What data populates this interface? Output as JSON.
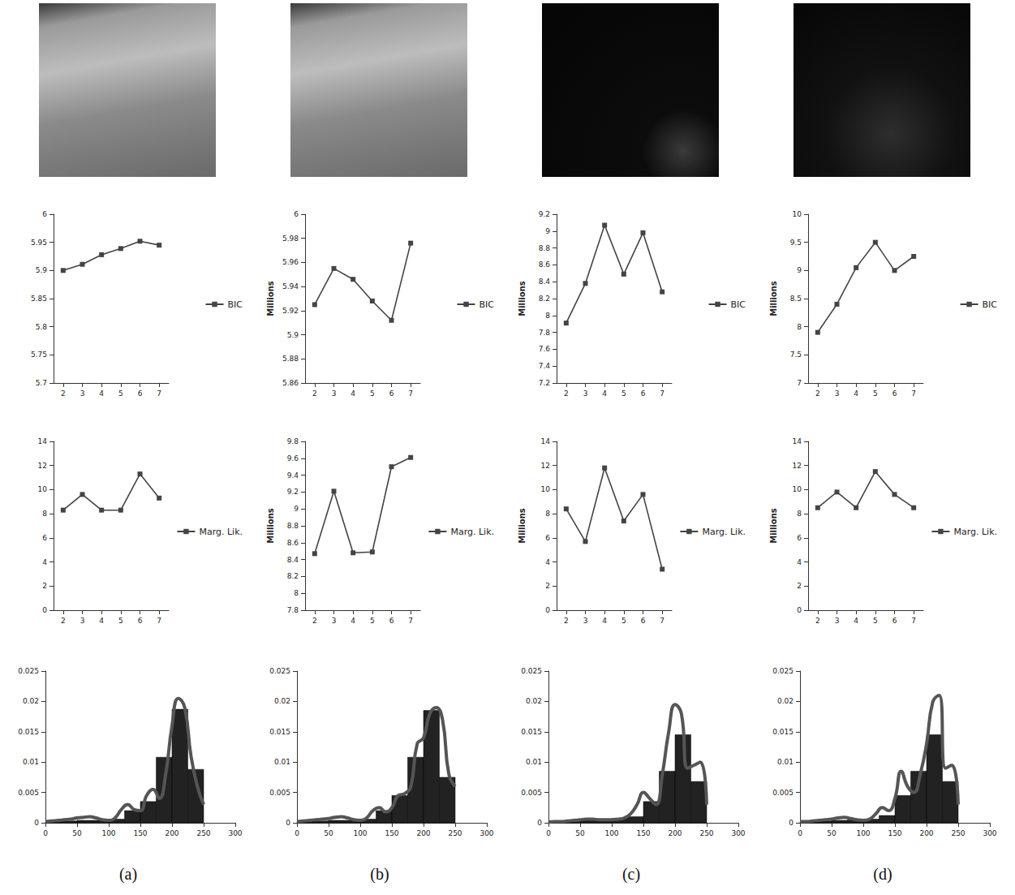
{
  "panel_labels": [
    "(a)",
    "(b)",
    "(c)",
    "(d)"
  ],
  "chart_data": [
    {
      "type": "line",
      "categories": [
        "2",
        "3",
        "4",
        "5",
        "6",
        "7"
      ],
      "series": [
        {
          "name": "BIC",
          "color": "#444444",
          "marker": "square",
          "values": [
            5.9,
            5.911,
            5.928,
            5.939,
            5.952,
            5.945
          ]
        }
      ],
      "ylim": [
        5.7,
        6.0
      ],
      "yticks": [
        5.7,
        5.75,
        5.8,
        5.85,
        5.9,
        5.95,
        6
      ],
      "grid": false,
      "legend": "right"
    },
    {
      "type": "line",
      "categories": [
        "2",
        "3",
        "4",
        "5",
        "6",
        "7"
      ],
      "series": [
        {
          "name": "Marg. Lik.",
          "color": "#444444",
          "marker": "square",
          "values": [
            8.3,
            9.6,
            8.3,
            8.3,
            11.3,
            9.3
          ]
        }
      ],
      "ylim": [
        0,
        14
      ],
      "yticks": [
        0,
        2,
        4,
        6,
        8,
        10,
        12,
        14
      ],
      "grid": false,
      "legend": "right"
    },
    {
      "type": "histogram",
      "bins": [
        0,
        25,
        50,
        75,
        100,
        125,
        150,
        175,
        200,
        225,
        250
      ],
      "counts": [
        0.0002,
        0.0003,
        0.0004,
        0.0004,
        0.0006,
        0.002,
        0.0035,
        0.0108,
        0.0187,
        0.0088
      ],
      "color": "#222222",
      "curve": {
        "color": "#555555",
        "x": [
          0,
          10,
          20,
          30,
          40,
          50,
          60,
          70,
          80,
          90,
          100,
          110,
          120,
          130,
          140,
          150,
          160,
          170,
          180,
          190,
          200,
          210,
          220,
          230,
          240,
          250
        ],
        "values": [
          0.0002,
          0.0003,
          0.0004,
          0.0005,
          0.0006,
          0.0008,
          0.0009,
          0.001,
          0.0008,
          0.0005,
          0.0004,
          0.0008,
          0.0022,
          0.003,
          0.0022,
          0.002,
          0.0045,
          0.0055,
          0.004,
          0.008,
          0.016,
          0.0205,
          0.019,
          0.011,
          0.006,
          0.003
        ]
      },
      "xlim": [
        0,
        300
      ],
      "xticks": [
        0,
        50,
        100,
        150,
        200,
        250,
        300
      ],
      "ylim": [
        0,
        0.025
      ],
      "yticks": [
        0,
        0.005,
        0.01,
        0.015,
        0.02,
        0.025
      ],
      "grid": false
    },
    {
      "type": "line",
      "categories": [
        "2",
        "3",
        "4",
        "5",
        "6",
        "7"
      ],
      "ylabel": "Millions",
      "series": [
        {
          "name": "BIC",
          "color": "#444444",
          "marker": "square",
          "values": [
            5.925,
            5.955,
            5.946,
            5.928,
            5.912,
            5.976
          ]
        }
      ],
      "ylim": [
        5.86,
        6.0
      ],
      "yticks": [
        5.86,
        5.88,
        5.9,
        5.92,
        5.94,
        5.96,
        5.98,
        6
      ],
      "grid": false,
      "legend": "right"
    },
    {
      "type": "line",
      "categories": [
        "2",
        "3",
        "4",
        "5",
        "6",
        "7"
      ],
      "ylabel": "Millions",
      "series": [
        {
          "name": "Marg. Lik.",
          "color": "#444444",
          "marker": "square",
          "values": [
            8.47,
            9.21,
            8.48,
            8.49,
            9.5,
            9.61
          ]
        }
      ],
      "ylim": [
        7.8,
        9.8
      ],
      "yticks": [
        7.8,
        8,
        8.2,
        8.4,
        8.6,
        8.8,
        9,
        9.2,
        9.4,
        9.6,
        9.8
      ],
      "grid": false,
      "legend": "right"
    },
    {
      "type": "histogram",
      "bins": [
        0,
        25,
        50,
        75,
        100,
        125,
        150,
        175,
        200,
        225,
        250
      ],
      "counts": [
        0.0002,
        0.0003,
        0.0004,
        0.0004,
        0.0006,
        0.002,
        0.0045,
        0.0108,
        0.0185,
        0.0075
      ],
      "color": "#222222",
      "curve": {
        "color": "#555555",
        "x": [
          0,
          10,
          20,
          30,
          40,
          50,
          60,
          70,
          80,
          90,
          100,
          110,
          120,
          130,
          140,
          150,
          160,
          170,
          180,
          190,
          200,
          210,
          220,
          230,
          240,
          250
        ],
        "values": [
          0.0002,
          0.0003,
          0.0004,
          0.0005,
          0.0006,
          0.0007,
          0.0009,
          0.001,
          0.0008,
          0.0005,
          0.0004,
          0.0008,
          0.002,
          0.0025,
          0.0018,
          0.0025,
          0.0045,
          0.0048,
          0.006,
          0.013,
          0.014,
          0.018,
          0.019,
          0.017,
          0.008,
          0.006
        ]
      },
      "xlim": [
        0,
        300
      ],
      "xticks": [
        0,
        50,
        100,
        150,
        200,
        250,
        300
      ],
      "ylim": [
        0,
        0.025
      ],
      "yticks": [
        0,
        0.005,
        0.01,
        0.015,
        0.02,
        0.025
      ],
      "grid": false
    },
    {
      "type": "line",
      "categories": [
        "2",
        "3",
        "4",
        "5",
        "6",
        "7"
      ],
      "ylabel": "Millions",
      "series": [
        {
          "name": "BIC",
          "color": "#444444",
          "marker": "square",
          "values": [
            7.91,
            8.38,
            9.07,
            8.49,
            8.98,
            8.28
          ]
        }
      ],
      "ylim": [
        7.2,
        9.2
      ],
      "yticks": [
        7.2,
        7.4,
        7.6,
        7.8,
        8,
        8.2,
        8.4,
        8.6,
        8.8,
        9,
        9.2
      ],
      "grid": false,
      "legend": "right"
    },
    {
      "type": "line",
      "categories": [
        "2",
        "3",
        "4",
        "5",
        "6",
        "7"
      ],
      "ylabel": "Millions",
      "series": [
        {
          "name": "Marg. Lik.",
          "color": "#444444",
          "marker": "square",
          "values": [
            8.4,
            5.7,
            11.8,
            7.4,
            9.6,
            3.4
          ]
        }
      ],
      "ylim": [
        0,
        14
      ],
      "yticks": [
        0,
        2,
        4,
        6,
        8,
        10,
        12,
        14
      ],
      "grid": false,
      "legend": "right"
    },
    {
      "type": "histogram",
      "bins": [
        0,
        25,
        50,
        75,
        100,
        125,
        150,
        175,
        200,
        225,
        250
      ],
      "counts": [
        0.0002,
        0.0002,
        0.0005,
        0.0005,
        0.0007,
        0.001,
        0.0035,
        0.0085,
        0.0145,
        0.0068
      ],
      "color": "#222222",
      "curve": {
        "color": "#555555",
        "x": [
          0,
          10,
          20,
          30,
          40,
          50,
          60,
          70,
          80,
          90,
          100,
          110,
          120,
          130,
          140,
          150,
          160,
          170,
          180,
          190,
          200,
          210,
          220,
          230,
          240,
          250
        ],
        "values": [
          0.0001,
          0.0002,
          0.0002,
          0.0003,
          0.0004,
          0.0005,
          0.0006,
          0.0006,
          0.0005,
          0.0005,
          0.0005,
          0.0006,
          0.0008,
          0.0015,
          0.003,
          0.005,
          0.004,
          0.003,
          0.008,
          0.015,
          0.0195,
          0.018,
          0.009,
          0.0095,
          0.01,
          0.003
        ]
      },
      "xlim": [
        0,
        300
      ],
      "xticks": [
        0,
        50,
        100,
        150,
        200,
        250,
        300
      ],
      "ylim": [
        0,
        0.025
      ],
      "yticks": [
        0,
        0.005,
        0.01,
        0.015,
        0.02,
        0.025
      ],
      "grid": false
    },
    {
      "type": "line",
      "categories": [
        "2",
        "3",
        "4",
        "5",
        "6",
        "7"
      ],
      "ylabel": "Millions",
      "series": [
        {
          "name": "BIC",
          "color": "#444444",
          "marker": "square",
          "values": [
            7.9,
            8.4,
            9.05,
            9.5,
            9.0,
            9.25
          ]
        }
      ],
      "ylim": [
        7,
        10
      ],
      "yticks": [
        7,
        7.5,
        8,
        8.5,
        9,
        9.5,
        10
      ],
      "grid": false,
      "legend": "right"
    },
    {
      "type": "line",
      "categories": [
        "2",
        "3",
        "4",
        "5",
        "6",
        "7"
      ],
      "ylabel": "Millions",
      "series": [
        {
          "name": "Marg. Lik.",
          "color": "#444444",
          "marker": "square",
          "values": [
            8.5,
            9.8,
            8.5,
            11.5,
            9.6,
            8.5
          ]
        }
      ],
      "ylim": [
        0,
        14
      ],
      "yticks": [
        0,
        2,
        4,
        6,
        8,
        10,
        12,
        14
      ],
      "grid": false,
      "legend": "right"
    },
    {
      "type": "histogram",
      "bins": [
        0,
        25,
        50,
        75,
        100,
        125,
        150,
        175,
        200,
        225,
        250
      ],
      "counts": [
        0.0002,
        0.0003,
        0.0004,
        0.0005,
        0.0006,
        0.0012,
        0.0045,
        0.0085,
        0.0145,
        0.0068
      ],
      "color": "#222222",
      "curve": {
        "color": "#555555",
        "x": [
          0,
          10,
          20,
          30,
          40,
          50,
          60,
          70,
          80,
          90,
          100,
          110,
          120,
          130,
          140,
          150,
          160,
          170,
          180,
          190,
          200,
          210,
          220,
          230,
          240,
          250
        ],
        "values": [
          0.0002,
          0.0002,
          0.0003,
          0.0004,
          0.0005,
          0.0006,
          0.0008,
          0.0009,
          0.0007,
          0.0005,
          0.0004,
          0.0006,
          0.0015,
          0.0025,
          0.002,
          0.004,
          0.0085,
          0.006,
          0.005,
          0.008,
          0.013,
          0.02,
          0.021,
          0.009,
          0.0095,
          0.003
        ]
      },
      "xlim": [
        0,
        300
      ],
      "xticks": [
        0,
        50,
        100,
        150,
        200,
        250,
        300
      ],
      "ylim": [
        0,
        0.025
      ],
      "yticks": [
        0,
        0.005,
        0.01,
        0.015,
        0.02,
        0.025
      ],
      "grid": false
    }
  ]
}
